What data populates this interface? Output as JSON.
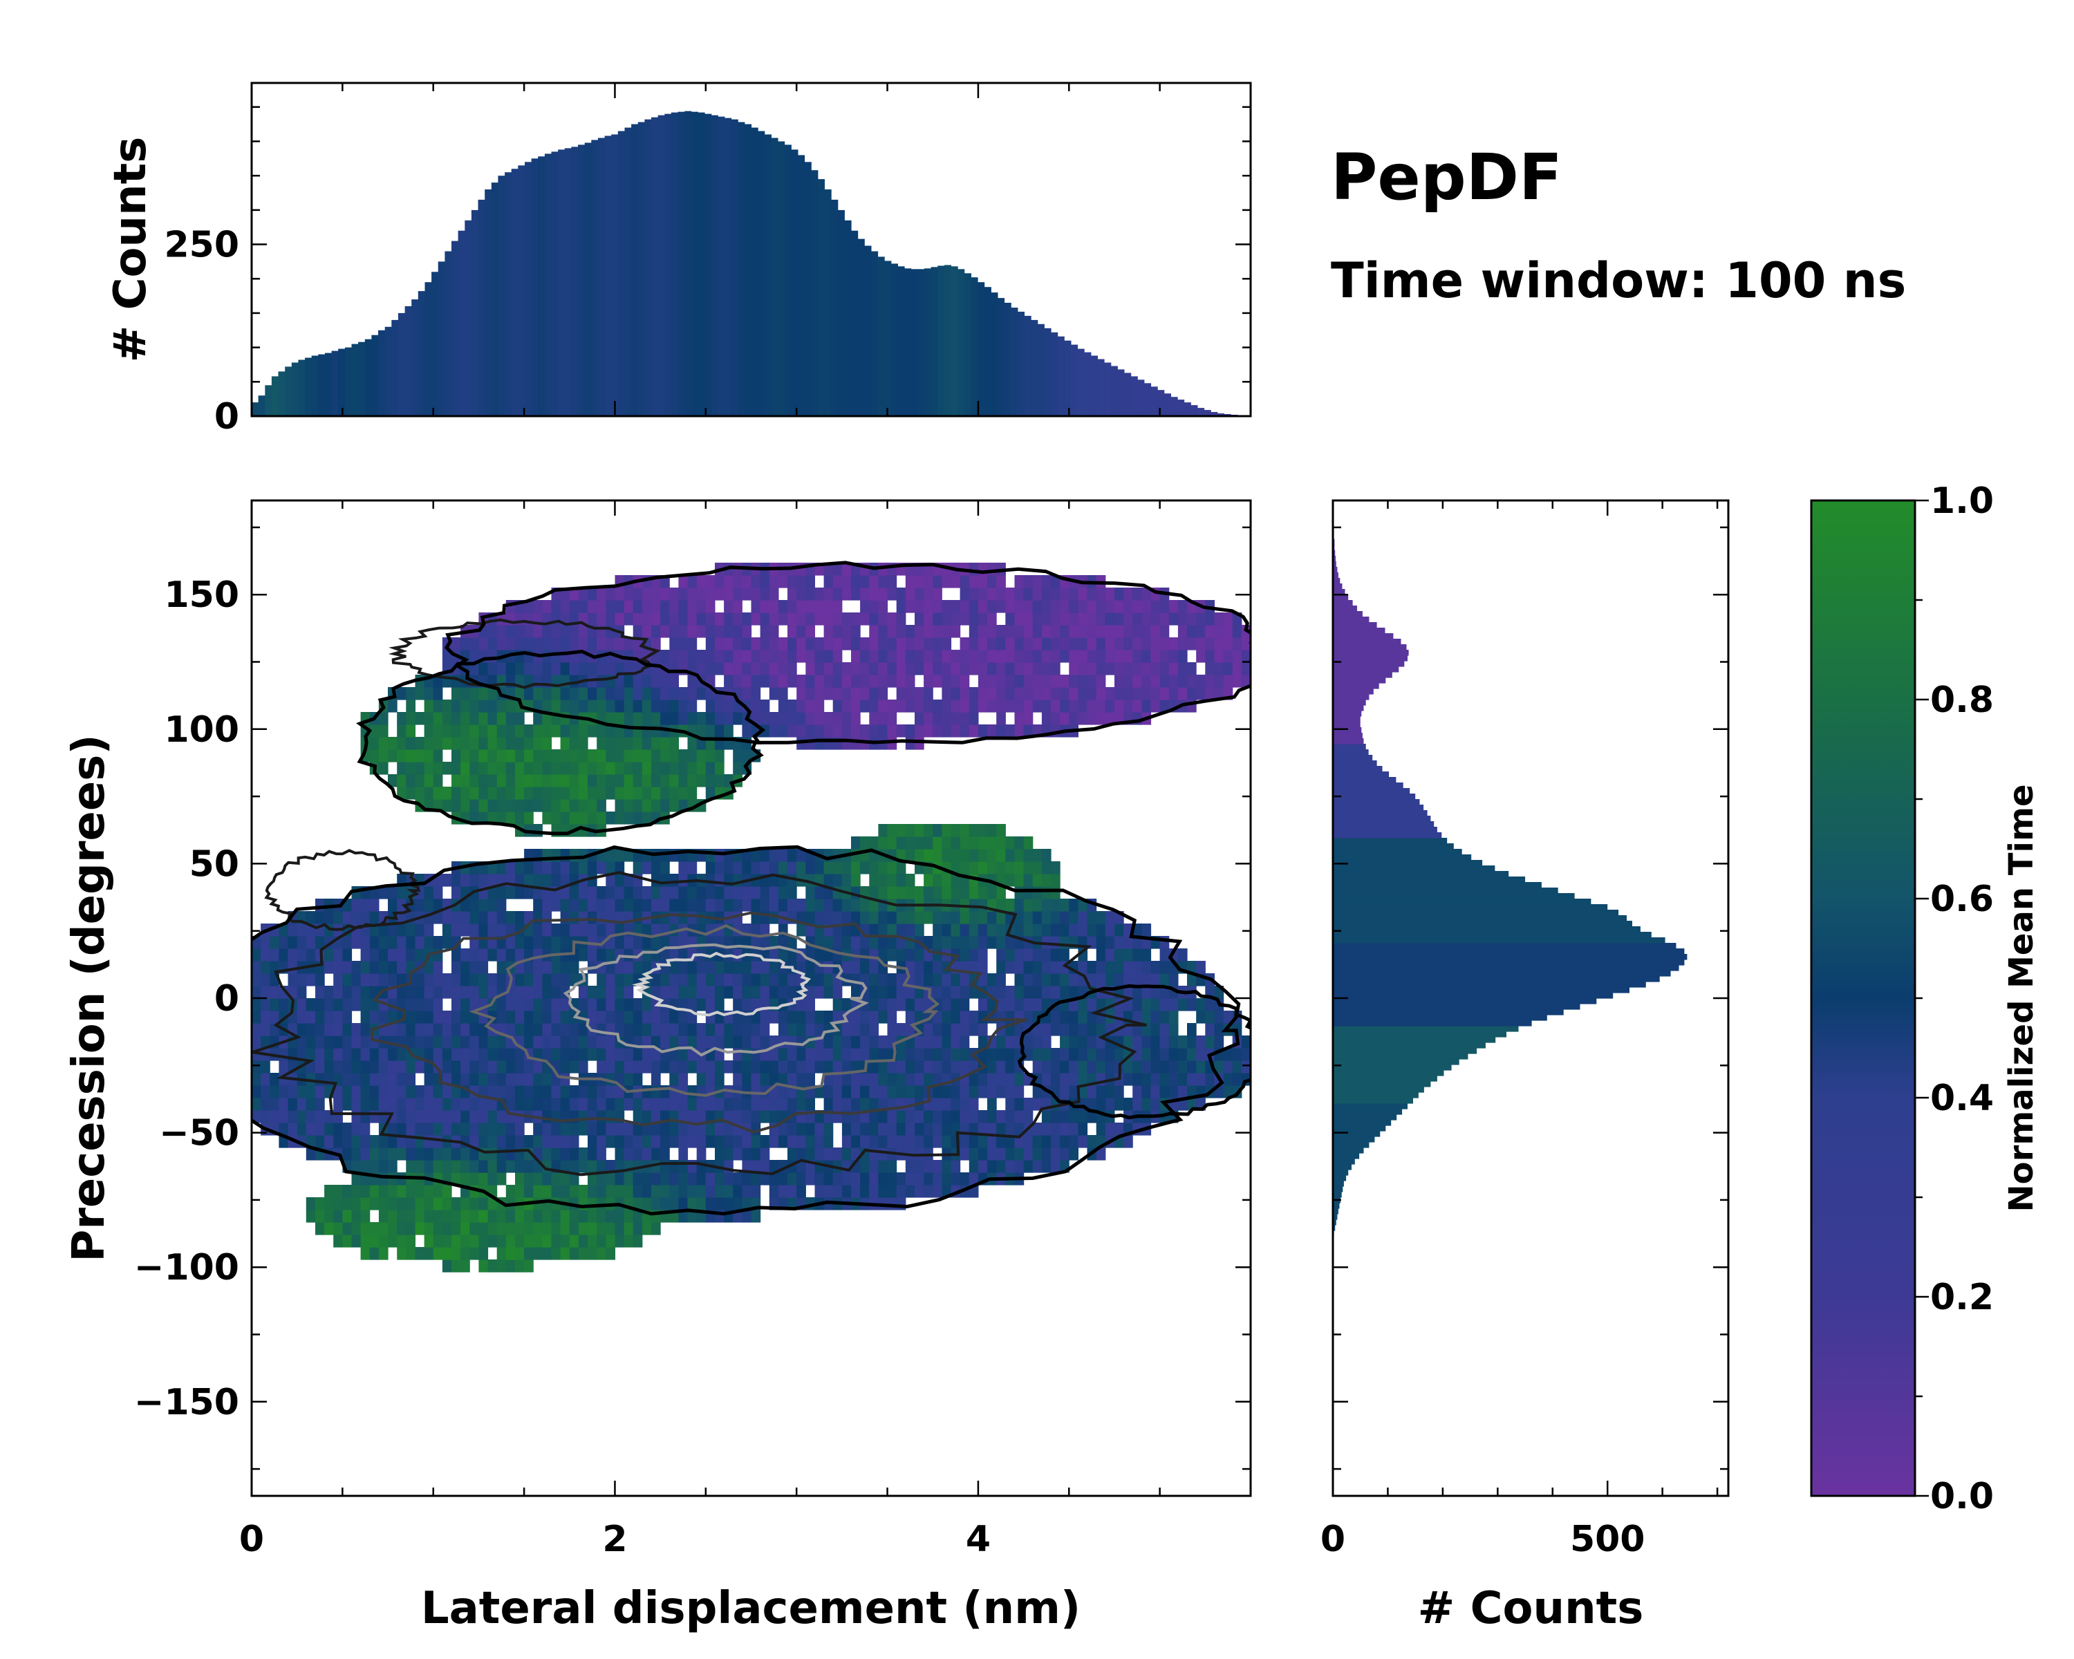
{
  "chart_data": {
    "type": "heatmap",
    "title": "PepDF",
    "subtitle": "Time window: 100 ns",
    "colors": {
      "c0": "#6a33a0",
      "c02": "#3d3a95",
      "c04": "#2e3f8f",
      "c05": "#0b3d6e",
      "c06": "#13546a",
      "c08": "#1a7045",
      "c1": "#238c2a",
      "outline": "#000000"
    },
    "main": {
      "xlabel": "Lateral displacement (nm)",
      "ylabel": "Precession (degrees)",
      "xlim": [
        0,
        5.5
      ],
      "ylim": [
        -185,
        185
      ],
      "xticks": [
        0,
        2,
        4
      ],
      "xtick_labels": [
        "0",
        "2",
        "4"
      ],
      "yticks": [
        -150,
        -100,
        -50,
        0,
        50,
        100,
        150
      ],
      "ytick_labels": [
        "−150",
        "−100",
        "−50",
        "0",
        "50",
        "100",
        "150"
      ],
      "blobs": [
        {
          "name": "upper-lobe",
          "cx": 3.35,
          "cy": 128,
          "rx": 2.05,
          "ry": 30,
          "val": 0.08
        },
        {
          "name": "upper-lobe-left",
          "cx": 1.7,
          "cy": 95,
          "rx": 1.0,
          "ry": 30,
          "val": 0.85
        },
        {
          "name": "main-lobe",
          "cx": 2.5,
          "cy": -12,
          "rx": 2.6,
          "ry": 62,
          "val": 0.45
        },
        {
          "name": "main-green-top",
          "cx": 3.8,
          "cy": 45,
          "rx": 0.6,
          "ry": 18,
          "val": 0.9
        },
        {
          "name": "main-green-bottom",
          "cx": 1.3,
          "cy": -80,
          "rx": 0.9,
          "ry": 18,
          "val": 0.9
        },
        {
          "name": "right-tail",
          "cx": 4.9,
          "cy": -20,
          "rx": 0.6,
          "ry": 22,
          "val": 0.5
        }
      ]
    },
    "top_histogram": {
      "ylabel": "# Counts",
      "ylim": [
        0,
        485
      ],
      "yticks": [
        0,
        250
      ],
      "ytick_labels": [
        "0",
        "250"
      ],
      "bins": 150,
      "x_range": [
        0,
        5.5
      ],
      "values": [
        20,
        30,
        45,
        58,
        65,
        72,
        78,
        82,
        85,
        88,
        90,
        92,
        95,
        98,
        100,
        105,
        108,
        112,
        118,
        125,
        130,
        140,
        150,
        160,
        170,
        182,
        195,
        210,
        225,
        240,
        255,
        270,
        285,
        300,
        315,
        330,
        340,
        350,
        355,
        360,
        365,
        370,
        375,
        378,
        382,
        385,
        388,
        390,
        392,
        395,
        398,
        402,
        405,
        408,
        410,
        415,
        420,
        425,
        428,
        432,
        435,
        438,
        440,
        442,
        443,
        444,
        443,
        442,
        440,
        438,
        436,
        434,
        432,
        428,
        425,
        420,
        415,
        410,
        405,
        400,
        395,
        388,
        380,
        370,
        358,
        345,
        330,
        315,
        300,
        285,
        270,
        258,
        248,
        240,
        232,
        226,
        222,
        218,
        215,
        214,
        214,
        215,
        217,
        219,
        220,
        218,
        214,
        208,
        202,
        195,
        188,
        180,
        172,
        165,
        158,
        152,
        146,
        140,
        134,
        128,
        122,
        116,
        110,
        104,
        98,
        93,
        88,
        83,
        78,
        73,
        68,
        63,
        58,
        53,
        48,
        43,
        38,
        33,
        28,
        24,
        20,
        16,
        12,
        9,
        6,
        4,
        3,
        2,
        1,
        1
      ],
      "colors_t": [
        0.55,
        0.55,
        0.6,
        0.62,
        0.6,
        0.58,
        0.57,
        0.55,
        0.53,
        0.52,
        0.5,
        0.5,
        0.48,
        0.5,
        0.52,
        0.53,
        0.52,
        0.5,
        0.5,
        0.48,
        0.47,
        0.46,
        0.45,
        0.45,
        0.46,
        0.47,
        0.48,
        0.48,
        0.47,
        0.46,
        0.45,
        0.44,
        0.44,
        0.45,
        0.46,
        0.47,
        0.48,
        0.47,
        0.46,
        0.45,
        0.45,
        0.46,
        0.47,
        0.48,
        0.47,
        0.46,
        0.45,
        0.45,
        0.46,
        0.47,
        0.48,
        0.47,
        0.46,
        0.45,
        0.45,
        0.46,
        0.47,
        0.48,
        0.47,
        0.46,
        0.45,
        0.45,
        0.46,
        0.47,
        0.48,
        0.49,
        0.5,
        0.5,
        0.49,
        0.48,
        0.47,
        0.47,
        0.48,
        0.49,
        0.5,
        0.5,
        0.5,
        0.51,
        0.52,
        0.52,
        0.51,
        0.5,
        0.5,
        0.5,
        0.51,
        0.52,
        0.52,
        0.51,
        0.5,
        0.5,
        0.5,
        0.5,
        0.5,
        0.51,
        0.52,
        0.52,
        0.51,
        0.5,
        0.5,
        0.5,
        0.51,
        0.52,
        0.53,
        0.55,
        0.57,
        0.58,
        0.56,
        0.54,
        0.52,
        0.5,
        0.5,
        0.5,
        0.49,
        0.48,
        0.47,
        0.46,
        0.45,
        0.45,
        0.45,
        0.44,
        0.43,
        0.42,
        0.42,
        0.41,
        0.4,
        0.4,
        0.39,
        0.38,
        0.38,
        0.37,
        0.36,
        0.36,
        0.35,
        0.35,
        0.34,
        0.34,
        0.33,
        0.33,
        0.32,
        0.32,
        0.31,
        0.31,
        0.3,
        0.3,
        0.3,
        0.3,
        0.3,
        0.3,
        0.3,
        0.3
      ]
    },
    "right_histogram": {
      "xlabel": "# Counts",
      "xlim": [
        0,
        720
      ],
      "xticks": [
        0,
        500
      ],
      "xtick_labels": [
        "0",
        "500"
      ],
      "bins": 180,
      "y_range": [
        -185,
        185
      ],
      "values": [
        0,
        0,
        0,
        0,
        0,
        0,
        0,
        0,
        0,
        0,
        0,
        0,
        0,
        0,
        0,
        0,
        0,
        0,
        0,
        0,
        0,
        0,
        0,
        0,
        0,
        0,
        0,
        0,
        0,
        0,
        0,
        0,
        0,
        0,
        0,
        0,
        0,
        0,
        0,
        0,
        0,
        0,
        0,
        0,
        0,
        0,
        0,
        2,
        4,
        6,
        8,
        10,
        12,
        14,
        16,
        18,
        20,
        24,
        28,
        34,
        40,
        48,
        56,
        66,
        76,
        86,
        96,
        106,
        116,
        126,
        136,
        146,
        156,
        166,
        178,
        190,
        202,
        216,
        230,
        246,
        262,
        278,
        296,
        316,
        338,
        362,
        390,
        420,
        450,
        480,
        510,
        540,
        570,
        595,
        615,
        630,
        640,
        645,
        640,
        625,
        605,
        580,
        560,
        545,
        535,
        520,
        500,
        470,
        440,
        410,
        380,
        350,
        320,
        295,
        272,
        252,
        235,
        220,
        208,
        198,
        190,
        184,
        178,
        172,
        165,
        158,
        150,
        140,
        128,
        115,
        102,
        90,
        80,
        72,
        65,
        60,
        56,
        54,
        52,
        50,
        50,
        52,
        56,
        60,
        66,
        74,
        84,
        96,
        108,
        120,
        130,
        136,
        138,
        134,
        124,
        110,
        95,
        80,
        66,
        54,
        44,
        36,
        28,
        22,
        17,
        13,
        10,
        8,
        6,
        5,
        4,
        3,
        3,
        2,
        2,
        1,
        1,
        1,
        0,
        0,
        0,
        0,
        0,
        0
      ]
    },
    "colorbar": {
      "label": "Normalized Mean Time",
      "range": [
        0,
        1
      ],
      "ticks": [
        0.0,
        0.2,
        0.4,
        0.6,
        0.8,
        1.0
      ],
      "tick_labels": [
        "0.0",
        "0.2",
        "0.4",
        "0.6",
        "0.8",
        "1.0"
      ]
    }
  }
}
